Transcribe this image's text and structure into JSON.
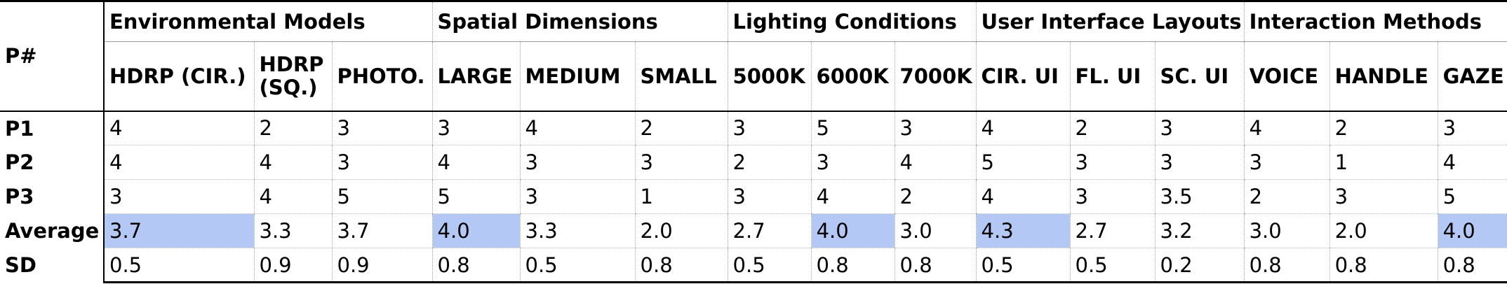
{
  "table": {
    "corner_label": "P#",
    "groups": [
      {
        "label": "Environmental Models",
        "span": 3
      },
      {
        "label": "Spatial Dimensions",
        "span": 3
      },
      {
        "label": "Lighting Conditions",
        "span": 3
      },
      {
        "label": "User Interface Layouts",
        "span": 3
      },
      {
        "label": "Interaction Methods",
        "span": 3
      }
    ],
    "columns": [
      "HDRP (CIR.)",
      "HDRP (SQ.)",
      "PHOTO.",
      "LARGE",
      "MEDIUM",
      "SMALL",
      "5000K",
      "6000K",
      "7000K",
      "CIR. UI",
      "FL. UI",
      "SC. UI",
      "VOICE",
      "HANDLE",
      "GAZE"
    ],
    "rows": [
      {
        "label": "P1",
        "values": [
          "4",
          "2",
          "3",
          "3",
          "4",
          "2",
          "3",
          "5",
          "3",
          "4",
          "2",
          "3",
          "4",
          "2",
          "3"
        ]
      },
      {
        "label": "P2",
        "values": [
          "4",
          "4",
          "3",
          "4",
          "3",
          "3",
          "2",
          "3",
          "4",
          "5",
          "3",
          "3",
          "3",
          "1",
          "4"
        ]
      },
      {
        "label": "P3",
        "values": [
          "3",
          "4",
          "5",
          "5",
          "3",
          "1",
          "3",
          "4",
          "2",
          "4",
          "3",
          "3.5",
          "2",
          "3",
          "5"
        ]
      },
      {
        "label": "Average",
        "values": [
          "3.7",
          "3.3",
          "3.7",
          "4.0",
          "3.3",
          "2.0",
          "2.7",
          "4.0",
          "3.0",
          "4.3",
          "2.7",
          "3.2",
          "3.0",
          "2.0",
          "4.0"
        ]
      },
      {
        "label": "SD",
        "values": [
          "0.5",
          "0.9",
          "0.9",
          "0.8",
          "0.5",
          "0.8",
          "0.5",
          "0.8",
          "0.8",
          "0.5",
          "0.5",
          "0.2",
          "0.8",
          "0.8",
          "0.8"
        ]
      }
    ],
    "highlight_color": "#b4c8f6"
  }
}
